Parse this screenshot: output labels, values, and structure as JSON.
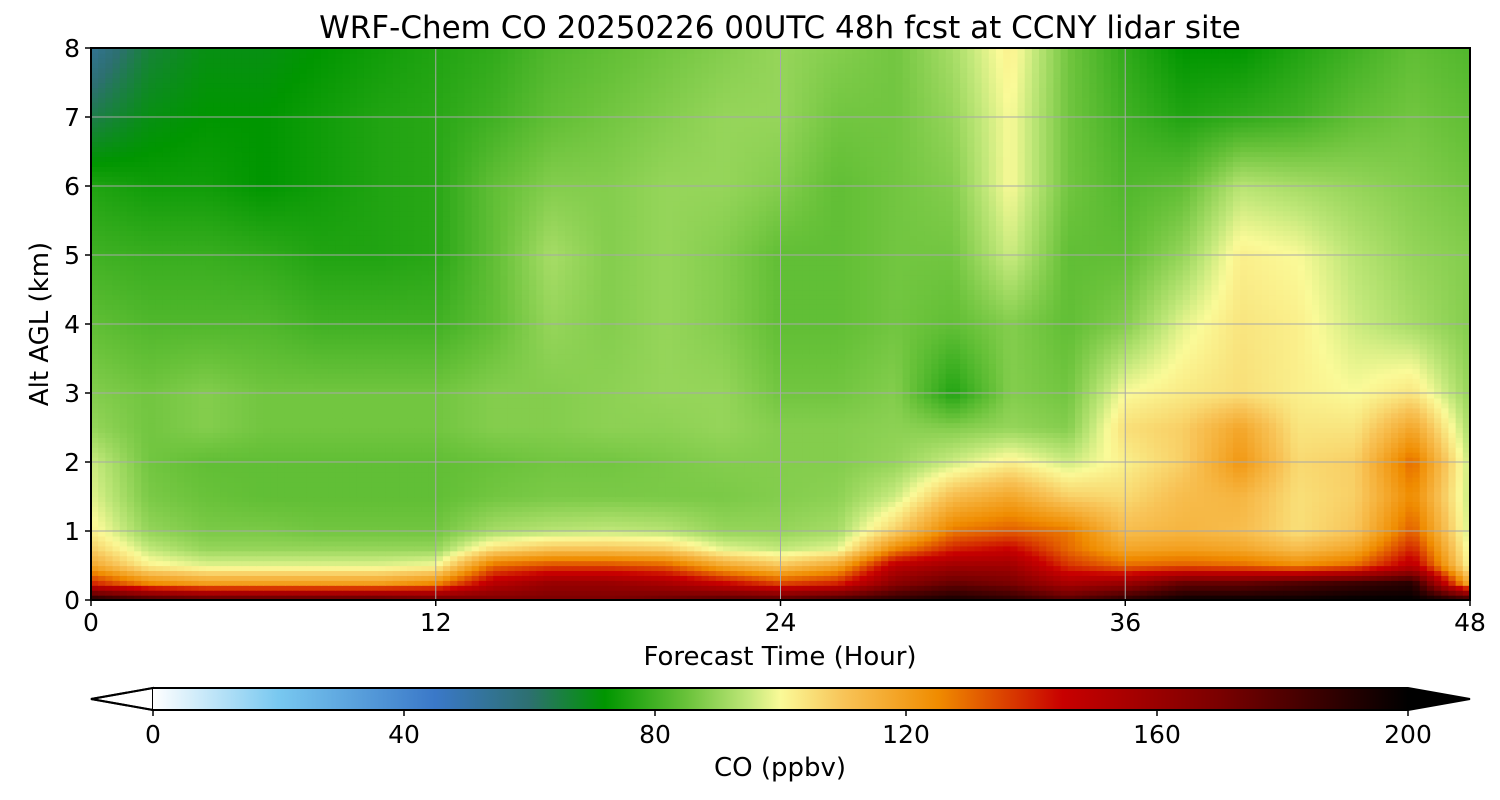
{
  "chart_data": {
    "type": "heatmap",
    "title": "WRF-Chem CO  20250226 00UTC 48h fcst at CCNY lidar site",
    "xlabel": "Forecast Time (Hour)",
    "ylabel": "Alt AGL (km)",
    "xlim": [
      0,
      48
    ],
    "ylim": [
      0,
      8
    ],
    "xticks": [
      0,
      12,
      24,
      36,
      48
    ],
    "yticks": [
      0,
      1,
      2,
      3,
      4,
      5,
      6,
      7,
      8
    ],
    "grid": true,
    "colorbar": {
      "label": "CO  (ppbv)",
      "range": [
        0,
        200
      ],
      "ticks": [
        0,
        40,
        80,
        120,
        160,
        200
      ],
      "extend": "both",
      "orientation": "horizontal",
      "location": "bottom",
      "color_stops": [
        {
          "value": 0,
          "color": "#ffffff"
        },
        {
          "value": 20,
          "color": "#78c8f0"
        },
        {
          "value": 45,
          "color": "#3a78c8"
        },
        {
          "value": 60,
          "color": "#2d7070"
        },
        {
          "value": 72,
          "color": "#009600"
        },
        {
          "value": 85,
          "color": "#69c23a"
        },
        {
          "value": 95,
          "color": "#c2e87a"
        },
        {
          "value": 100,
          "color": "#fafa98"
        },
        {
          "value": 110,
          "color": "#f8c458"
        },
        {
          "value": 125,
          "color": "#f08c00"
        },
        {
          "value": 145,
          "color": "#c80000"
        },
        {
          "value": 170,
          "color": "#7a0000"
        },
        {
          "value": 200,
          "color": "#000000"
        }
      ]
    },
    "x": [
      0,
      2,
      4,
      6,
      8,
      10,
      12,
      14,
      16,
      18,
      20,
      22,
      24,
      26,
      28,
      30,
      32,
      34,
      36,
      38,
      40,
      42,
      44,
      46,
      48
    ],
    "y": [
      0,
      0.25,
      0.5,
      0.75,
      1,
      1.5,
      2,
      2.5,
      3,
      4,
      5,
      6,
      7,
      8
    ],
    "z": [
      [
        195,
        185,
        180,
        180,
        180,
        180,
        175,
        170,
        170,
        170,
        175,
        180,
        180,
        185,
        190,
        195,
        190,
        180,
        190,
        198,
        198,
        198,
        200,
        200,
        190
      ],
      [
        140,
        125,
        120,
        120,
        120,
        120,
        125,
        150,
        160,
        160,
        155,
        145,
        135,
        140,
        165,
        175,
        170,
        155,
        160,
        175,
        175,
        180,
        185,
        190,
        115
      ],
      [
        118,
        102,
        98,
        98,
        98,
        98,
        100,
        130,
        135,
        135,
        132,
        118,
        110,
        118,
        150,
        158,
        158,
        138,
        130,
        132,
        130,
        125,
        130,
        150,
        100
      ],
      [
        108,
        95,
        90,
        90,
        90,
        90,
        90,
        105,
        110,
        110,
        108,
        98,
        95,
        98,
        125,
        140,
        145,
        130,
        118,
        120,
        118,
        112,
        118,
        140,
        98
      ],
      [
        102,
        90,
        87,
        87,
        86,
        86,
        86,
        92,
        94,
        95,
        94,
        90,
        90,
        92,
        108,
        128,
        132,
        128,
        112,
        114,
        112,
        105,
        110,
        132,
        96
      ],
      [
        98,
        87,
        85,
        84,
        84,
        84,
        84,
        86,
        87,
        87,
        87,
        87,
        88,
        89,
        96,
        112,
        118,
        108,
        106,
        112,
        114,
        105,
        108,
        125,
        95
      ],
      [
        96,
        86,
        84,
        84,
        84,
        84,
        84,
        85,
        86,
        86,
        87,
        88,
        88,
        88,
        90,
        96,
        102,
        96,
        102,
        108,
        122,
        106,
        108,
        130,
        95
      ],
      [
        90,
        86,
        88,
        86,
        86,
        86,
        86,
        88,
        88,
        89,
        89,
        90,
        88,
        88,
        89,
        88,
        90,
        88,
        105,
        108,
        118,
        104,
        104,
        118,
        92
      ],
      [
        88,
        86,
        88,
        86,
        86,
        86,
        86,
        88,
        88,
        89,
        90,
        90,
        86,
        86,
        88,
        76,
        88,
        86,
        100,
        103,
        105,
        102,
        100,
        104,
        90
      ],
      [
        84,
        82,
        82,
        82,
        80,
        80,
        80,
        84,
        90,
        88,
        90,
        88,
        84,
        84,
        86,
        84,
        88,
        84,
        88,
        98,
        104,
        102,
        96,
        92,
        88
      ],
      [
        80,
        79,
        79,
        78,
        76,
        76,
        77,
        84,
        92,
        88,
        90,
        88,
        84,
        84,
        86,
        86,
        96,
        84,
        84,
        90,
        102,
        100,
        94,
        90,
        88
      ],
      [
        76,
        74,
        74,
        72,
        74,
        76,
        77,
        84,
        88,
        88,
        90,
        90,
        88,
        84,
        86,
        88,
        100,
        86,
        82,
        84,
        94,
        92,
        90,
        88,
        86
      ],
      [
        64,
        70,
        72,
        72,
        74,
        76,
        77,
        80,
        84,
        86,
        88,
        90,
        90,
        86,
        86,
        90,
        100,
        86,
        80,
        76,
        78,
        80,
        84,
        86,
        84
      ],
      [
        54,
        66,
        70,
        70,
        72,
        74,
        76,
        78,
        82,
        84,
        86,
        88,
        90,
        88,
        86,
        92,
        102,
        86,
        78,
        72,
        72,
        76,
        80,
        84,
        82
      ]
    ]
  }
}
